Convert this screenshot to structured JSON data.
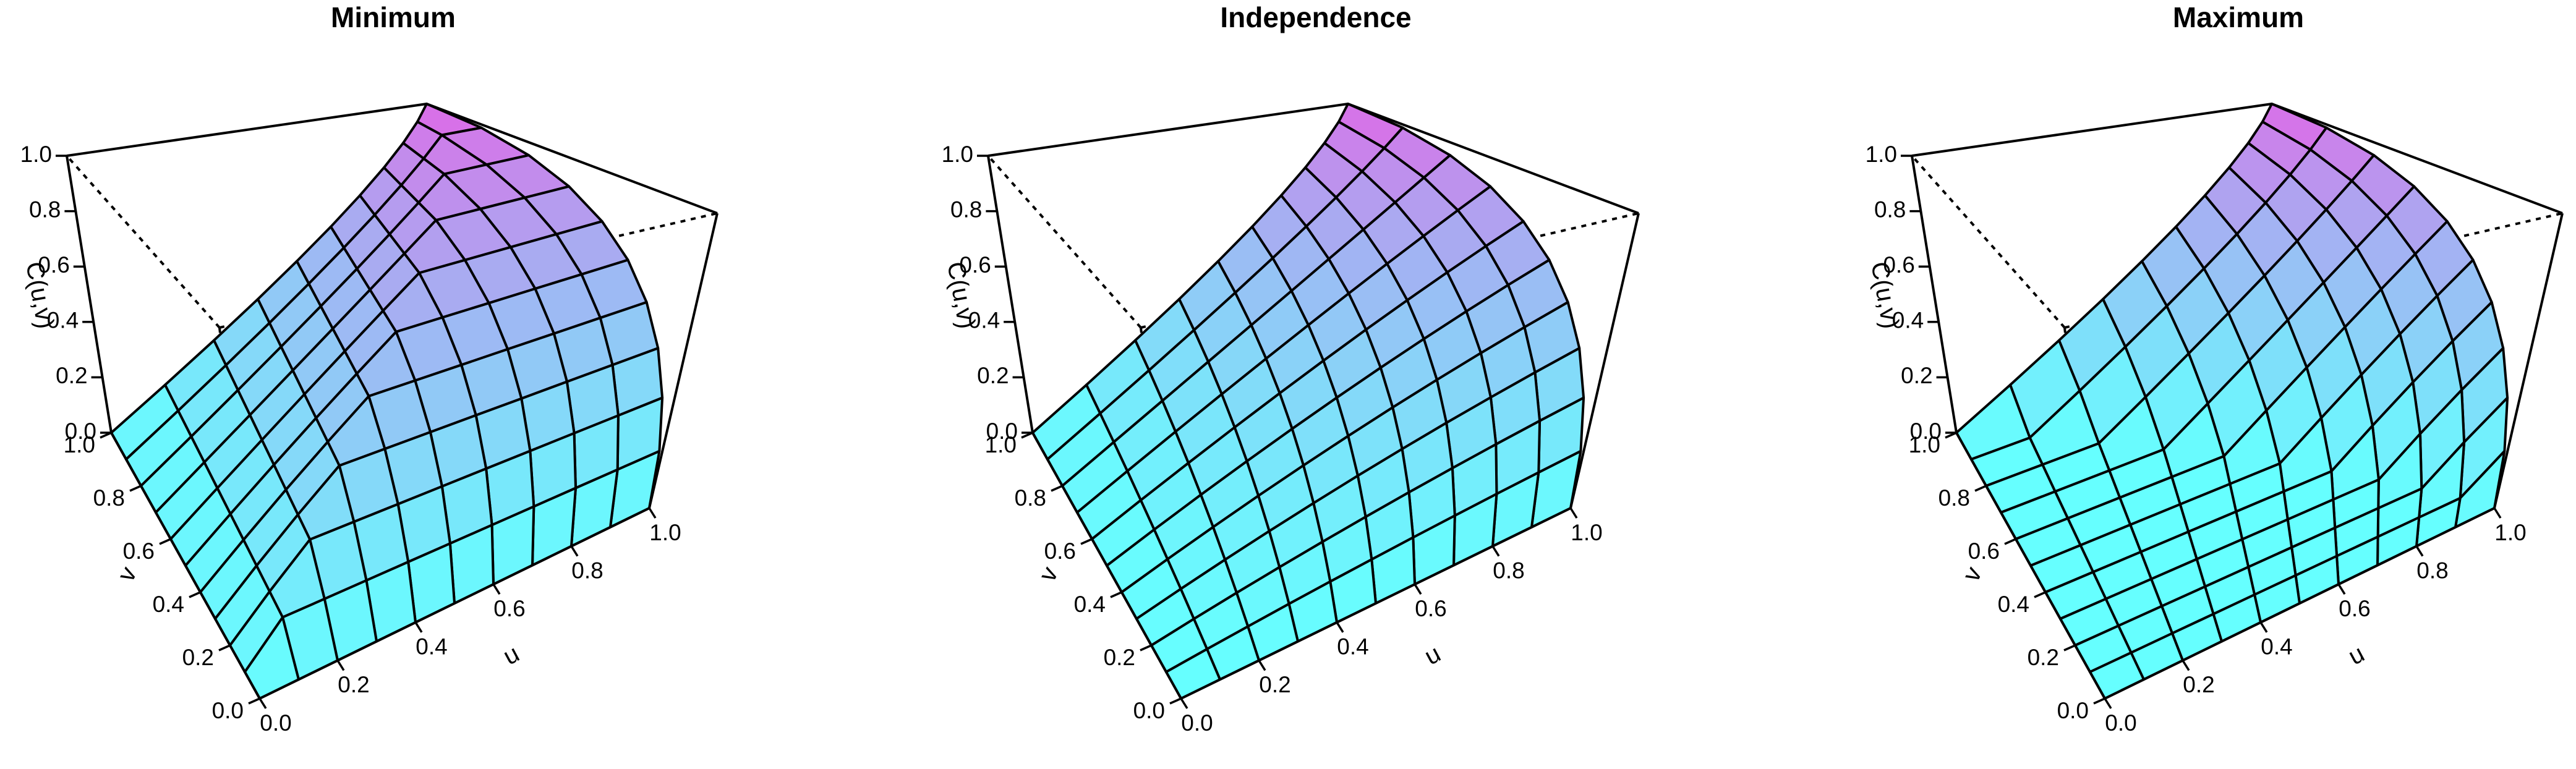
{
  "chart_data": [
    {
      "type": "surface",
      "title": "Minimum",
      "function": "min",
      "xlabel": "u",
      "ylabel": "v",
      "zlabel": "C(u,v)",
      "x": [
        0,
        0.1,
        0.2,
        0.3,
        0.4,
        0.5,
        0.6,
        0.7,
        0.8,
        0.9,
        1.0
      ],
      "y": [
        0,
        0.1,
        0.2,
        0.3,
        0.4,
        0.5,
        0.6,
        0.7,
        0.8,
        0.9,
        1.0
      ],
      "xlim": [
        0,
        1
      ],
      "ylim": [
        0,
        1
      ],
      "zlim": [
        0,
        1
      ],
      "x_ticks": [
        "0.0",
        "0.2",
        "0.4",
        "0.6",
        "0.8",
        "1.0"
      ],
      "y_ticks": [
        "0.0",
        "0.2",
        "0.4",
        "0.6",
        "0.8",
        "1.0"
      ],
      "z_ticks": [
        "0.0",
        "0.2",
        "0.4",
        "0.6",
        "0.8",
        "1.0"
      ],
      "color_low": "#66ffff",
      "color_high": "#e066e6"
    },
    {
      "type": "surface",
      "title": "Independence",
      "function": "product",
      "xlabel": "u",
      "ylabel": "v",
      "zlabel": "C(u,v)",
      "x": [
        0,
        0.1,
        0.2,
        0.3,
        0.4,
        0.5,
        0.6,
        0.7,
        0.8,
        0.9,
        1.0
      ],
      "y": [
        0,
        0.1,
        0.2,
        0.3,
        0.4,
        0.5,
        0.6,
        0.7,
        0.8,
        0.9,
        1.0
      ],
      "xlim": [
        0,
        1
      ],
      "ylim": [
        0,
        1
      ],
      "zlim": [
        0,
        1
      ],
      "x_ticks": [
        "0.0",
        "0.2",
        "0.4",
        "0.6",
        "0.8",
        "1.0"
      ],
      "y_ticks": [
        "0.0",
        "0.2",
        "0.4",
        "0.6",
        "0.8",
        "1.0"
      ],
      "z_ticks": [
        "0.0",
        "0.2",
        "0.4",
        "0.6",
        "0.8",
        "1.0"
      ],
      "color_low": "#66ffff",
      "color_high": "#e066e6"
    },
    {
      "type": "surface",
      "title": "Maximum",
      "function": "max",
      "xlabel": "u",
      "ylabel": "v",
      "zlabel": "C(u,v)",
      "x": [
        0,
        0.1,
        0.2,
        0.3,
        0.4,
        0.5,
        0.6,
        0.7,
        0.8,
        0.9,
        1.0
      ],
      "y": [
        0,
        0.1,
        0.2,
        0.3,
        0.4,
        0.5,
        0.6,
        0.7,
        0.8,
        0.9,
        1.0
      ],
      "xlim": [
        0,
        1
      ],
      "ylim": [
        0,
        1
      ],
      "zlim": [
        0,
        1
      ],
      "x_ticks": [
        "0.0",
        "0.2",
        "0.4",
        "0.6",
        "0.8",
        "1.0"
      ],
      "y_ticks": [
        "0.0",
        "0.2",
        "0.4",
        "0.6",
        "0.8",
        "1.0"
      ],
      "z_ticks": [
        "0.0",
        "0.2",
        "0.4",
        "0.6",
        "0.8",
        "1.0"
      ],
      "color_low": "#66ffff",
      "color_high": "#e066e6"
    }
  ]
}
